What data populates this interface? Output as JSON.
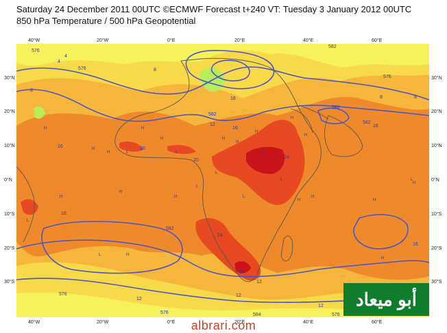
{
  "header": {
    "title_line1": "Saturday 24 December 2011 00UTC ©ECMWF Forecast t+240 VT: Tuesday 3 January 2012 00UTC",
    "title_line2": "850 hPa Temperature / 500 hPa Geopotential"
  },
  "map": {
    "lat_labels": [
      "30°N",
      "20°N",
      "10°N",
      "0°N",
      "10°S",
      "20°S",
      "30°S"
    ],
    "lon_labels": [
      "40°W",
      "20°W",
      "0°E",
      "20°E",
      "40°E",
      "60°E"
    ],
    "contour_labels": [
      "576",
      "576",
      "582",
      "582",
      "582",
      "576",
      "8",
      "8",
      "4",
      "12",
      "12",
      "16",
      "16",
      "16",
      "20",
      "20",
      "24",
      "24",
      "24",
      "582",
      "582",
      "576",
      "576",
      "584",
      "576",
      "12",
      "12",
      "16",
      "16",
      "16",
      "12",
      "8",
      "8",
      "4"
    ],
    "high_marks": [
      "H",
      "H",
      "H",
      "H",
      "H",
      "H",
      "H",
      "H",
      "H",
      "H",
      "H",
      "H",
      "H",
      "H",
      "H",
      "H",
      "H",
      "H",
      "H"
    ],
    "low_marks": [
      "L",
      "L",
      "L",
      "L",
      "L",
      "L",
      "L",
      "L",
      "L",
      "L"
    ],
    "colors": {
      "temp_4": "#f4f15a",
      "temp_8": "#f8d94a",
      "temp_12": "#f6b63c",
      "temp_16": "#ef8a2c",
      "temp_20": "#e74a22",
      "temp_24": "#c8141a",
      "temp_cold": "#b9ec5a",
      "geopotential_line": "#4655c8",
      "land_outline": "#555555"
    }
  },
  "footer": {
    "credit": "albrari.com",
    "logo": "أبو ميعاد"
  }
}
